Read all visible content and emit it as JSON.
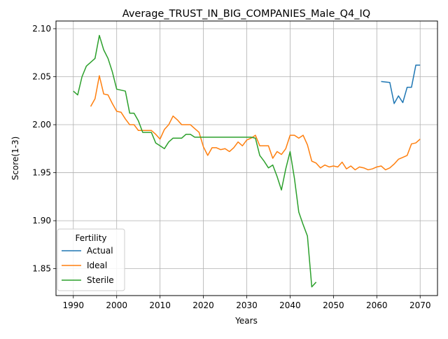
{
  "chart_data": {
    "type": "line",
    "title": "Average_TRUST_IN_BIG_COMPANIES_Male_Q4_IQ",
    "xlabel": "Years",
    "ylabel": "Score(1-3)",
    "xlim": [
      1986,
      2074
    ],
    "ylim": [
      1.822,
      2.108
    ],
    "x_ticks": [
      1990,
      2000,
      2010,
      2020,
      2030,
      2040,
      2050,
      2060,
      2070
    ],
    "y_ticks": [
      1.85,
      1.9,
      1.95,
      2.0,
      2.05,
      2.1
    ],
    "y_tick_labels": [
      "1.85",
      "1.90",
      "1.95",
      "2.00",
      "2.05",
      "2.10"
    ],
    "grid": true,
    "legend": {
      "title": "Fertility",
      "placement": "lower-left"
    },
    "series": [
      {
        "name": "Actual",
        "color": "#1f77b4",
        "x": [
          2061,
          2063,
          2064,
          2065,
          2066,
          2067,
          2068,
          2069,
          2070
        ],
        "y": [
          2.045,
          2.044,
          2.022,
          2.03,
          2.023,
          2.039,
          2.039,
          2.062,
          2.062
        ]
      },
      {
        "name": "Ideal",
        "color": "#ff7f0e",
        "x": [
          1994,
          1995,
          1996,
          1997,
          1998,
          1999,
          2000,
          2001,
          2002,
          2003,
          2004,
          2005,
          2006,
          2007,
          2008,
          2009,
          2010,
          2011,
          2012,
          2013,
          2014,
          2015,
          2016,
          2017,
          2018,
          2019,
          2020,
          2021,
          2022,
          2023,
          2024,
          2025,
          2026,
          2027,
          2028,
          2029,
          2030,
          2031,
          2032,
          2033,
          2034,
          2035,
          2036,
          2037,
          2038,
          2039,
          2040,
          2041,
          2042,
          2043,
          2044,
          2045,
          2046,
          2047,
          2048,
          2049,
          2050,
          2051,
          2052,
          2053,
          2054,
          2055,
          2056,
          2057,
          2058,
          2059,
          2060,
          2061,
          2062,
          2063,
          2064,
          2065,
          2066,
          2067,
          2068,
          2069,
          2070
        ],
        "y": [
          2.019,
          2.027,
          2.051,
          2.032,
          2.031,
          2.022,
          2.014,
          2.013,
          2.006,
          2.0,
          2.0,
          1.994,
          1.994,
          1.994,
          1.994,
          1.99,
          1.985,
          1.995,
          2.0,
          2.009,
          2.005,
          2.0,
          2.0,
          2.0,
          1.996,
          1.992,
          1.977,
          1.968,
          1.976,
          1.976,
          1.974,
          1.975,
          1.972,
          1.976,
          1.982,
          1.978,
          1.984,
          1.986,
          1.989,
          1.978,
          1.978,
          1.978,
          1.965,
          1.972,
          1.969,
          1.975,
          1.989,
          1.989,
          1.986,
          1.989,
          1.979,
          1.962,
          1.96,
          1.955,
          1.958,
          1.956,
          1.957,
          1.956,
          1.961,
          1.954,
          1.957,
          1.953,
          1.956,
          1.955,
          1.953,
          1.954,
          1.956,
          1.957,
          1.953,
          1.955,
          1.959,
          1.964,
          1.966,
          1.968,
          1.98,
          1.981,
          1.985
        ]
      },
      {
        "name": "Sterile",
        "color": "#2ca02c",
        "x": [
          1990,
          1991,
          1992,
          1993,
          1994,
          1995,
          1996,
          1997,
          1998,
          1999,
          2000,
          2001,
          2002,
          2003,
          2004,
          2005,
          2006,
          2007,
          2008,
          2009,
          2010,
          2011,
          2012,
          2013,
          2014,
          2015,
          2016,
          2017,
          2018,
          2019,
          2020,
          2021,
          2022,
          2023,
          2024,
          2025,
          2026,
          2027,
          2028,
          2029,
          2030,
          2031,
          2032,
          2033,
          2034,
          2035,
          2036,
          2037,
          2038,
          2039,
          2040,
          2041,
          2042,
          2043,
          2044,
          2045,
          2046
        ],
        "y": [
          2.035,
          2.031,
          2.05,
          2.061,
          2.065,
          2.069,
          2.093,
          2.078,
          2.069,
          2.055,
          2.037,
          2.036,
          2.035,
          2.012,
          2.012,
          2.004,
          1.992,
          1.992,
          1.992,
          1.981,
          1.978,
          1.975,
          1.982,
          1.986,
          1.986,
          1.986,
          1.99,
          1.99,
          1.987,
          1.987,
          1.987,
          1.987,
          1.987,
          1.987,
          1.987,
          1.987,
          1.987,
          1.987,
          1.987,
          1.987,
          1.987,
          1.987,
          1.986,
          1.968,
          1.962,
          1.955,
          1.958,
          1.946,
          1.932,
          1.954,
          1.972,
          1.944,
          1.909,
          1.896,
          1.884,
          1.831,
          1.836
        ]
      }
    ]
  }
}
